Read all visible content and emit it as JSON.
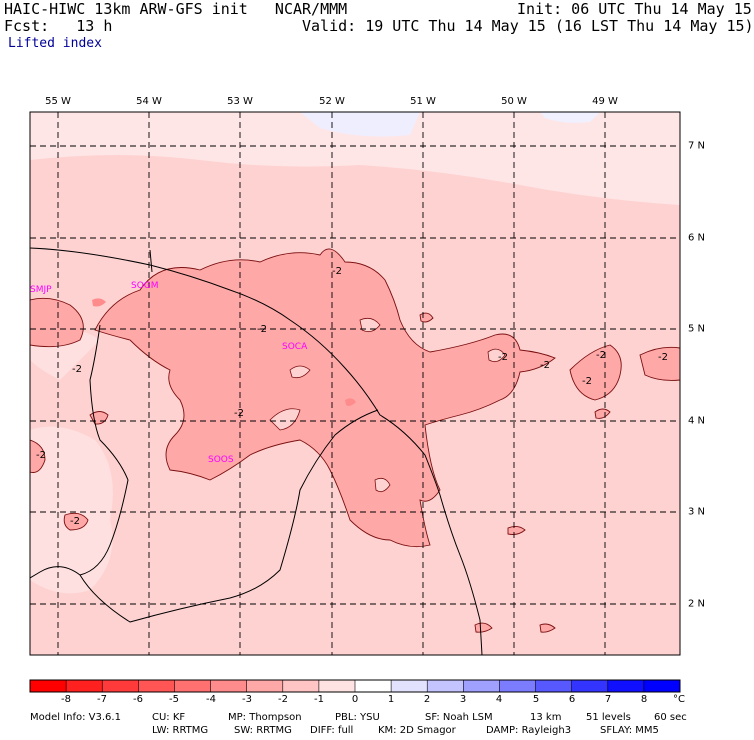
{
  "header": {
    "model_line": "HAIC-HIWC 13km ARW-GFS init   NCAR/MMM",
    "init_line": "Init: 06 UTC Thu 14 May 15",
    "fcst_line": "Fcst:   13 h",
    "valid_line": "Valid: 19 UTC Thu 14 May 15 (16 LST Thu 14 May 15)",
    "field_name": "Lifted index"
  },
  "map": {
    "longitude_labels": [
      "55 W",
      "54 W",
      "53 W",
      "52 W",
      "51 W",
      "50 W",
      "49 W"
    ],
    "latitude_labels": [
      "7 N",
      "6 N",
      "5 N",
      "4 N",
      "3 N",
      "2 N"
    ],
    "stations": [
      "SMJP",
      "SOGM",
      "SOCA",
      "SOOS"
    ],
    "contour_labels": [
      "-2",
      "-2",
      "-2",
      "-2",
      "-2",
      "-2",
      "-2",
      "-2",
      "-2",
      "-2",
      "-2"
    ],
    "colors": {
      "station": "#ff00ff",
      "grid": "#000000",
      "background_field": "#ffd4d4"
    }
  },
  "colorbar": {
    "unit": "°C",
    "tick_labels": [
      "-8",
      "-7",
      "-6",
      "-5",
      "-4",
      "-3",
      "-2",
      "-1",
      "0",
      "1",
      "2",
      "3",
      "4",
      "5",
      "6",
      "7",
      "8"
    ],
    "colors": [
      "#ff0000",
      "#ff2020",
      "#ff3a3a",
      "#ff5555",
      "#ff7070",
      "#ff8c8c",
      "#ffa8a8",
      "#ffc4c4",
      "#ffe2e2",
      "#ffffff",
      "#e2e2ff",
      "#c4c4ff",
      "#a0a0ff",
      "#7c7cff",
      "#5858ff",
      "#3434ff",
      "#1010ff",
      "#0000ff"
    ]
  },
  "footer": {
    "line1": [
      "Model Info: V3.6.1",
      "CU: KF",
      "MP: Thompson",
      "PBL: YSU",
      "SF: Noah LSM",
      "13 km",
      "51 levels",
      "60 sec"
    ],
    "line2": [
      "LW: RRTMG",
      "SW: RRTMG",
      "DIFF: full",
      "KM: 2D Smagor",
      "DAMP: Rayleigh3",
      "SFLAY: MM5"
    ]
  }
}
